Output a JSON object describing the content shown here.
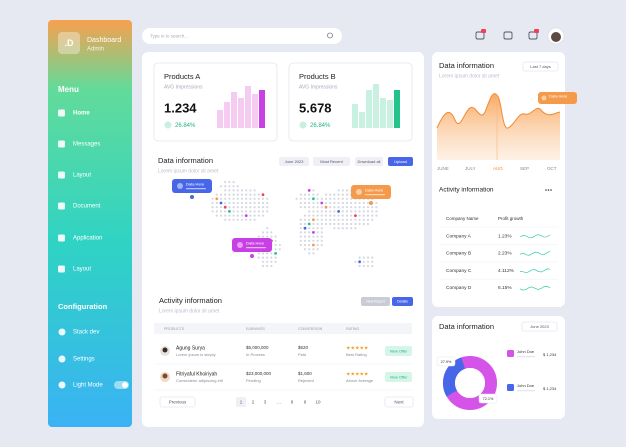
{
  "sidebar": {
    "logo": ".D",
    "title": "Dashboard",
    "subtitle": "Admin",
    "menu_heading": "Menu",
    "menu": [
      "Home",
      "Messages",
      "Layout",
      "Document",
      "Application",
      "Layout"
    ],
    "config_heading": "Configuration",
    "config": [
      "Stack dev",
      "Settings",
      "Light Mode"
    ]
  },
  "topbar": {
    "search_placeholder": "Type in to search..."
  },
  "products": [
    {
      "title": "Products A",
      "subtitle": "AVG Impressions",
      "value": "1.234",
      "change": "26.84%"
    },
    {
      "title": "Products B",
      "subtitle": "AVG Impressions",
      "value": "5.678",
      "change": "26.84%"
    }
  ],
  "data_info": {
    "title": "Data information",
    "subtitle": "Lorem ipsum dolor sit amet",
    "filters": [
      "June 2023",
      "Most Recent",
      "Download all",
      "Upload"
    ],
    "tooltips": [
      "Data Here",
      "Data Here",
      "Data Here"
    ]
  },
  "activity": {
    "title": "Activity information",
    "subtitle": "Lorem ipsum dolor sit amet",
    "buttons": [
      "New Report",
      "Details"
    ],
    "columns": [
      "PRODUCTS",
      "EARNINGS",
      "CONVERSION",
      "RATING"
    ],
    "rows": [
      {
        "name": "Agung Surya",
        "desc": "Lorem ipsum is simply",
        "earnings": "$5,000,000",
        "earnings_status": "In Process",
        "conversion": "$520",
        "conversion_status": "Paid",
        "stars": "★★★★★",
        "rating": "Best Rating",
        "action": "View Offer"
      },
      {
        "name": "Fitriyaful Khoiriyah",
        "desc": "Consectetur adipiscing elit",
        "earnings": "$23,000,000",
        "earnings_status": "Pending",
        "conversion": "$1,600",
        "conversion_status": "Rejected",
        "stars": "★★★★★",
        "rating": "Above Average",
        "action": "View Offer"
      }
    ],
    "pagination": {
      "prev": "Previous",
      "pages": [
        "1",
        "2",
        "3",
        "...",
        "8",
        "9",
        "10"
      ],
      "next": "Next"
    }
  },
  "trend": {
    "title": "Data information",
    "subtitle": "Lorem ipsum dolor sit amet",
    "range": "Last 7 days",
    "months": [
      "JUNE",
      "JULY",
      "AUG",
      "SEP",
      "OCT"
    ],
    "tooltip": "Data Here"
  },
  "growth": {
    "title": "Activity information",
    "columns": [
      "Company Name",
      "Profit growth"
    ],
    "rows": [
      [
        "Company A",
        "1.23%"
      ],
      [
        "Company B",
        "2.23%"
      ],
      [
        "Company C",
        "4.112%"
      ],
      [
        "Company D",
        "6.15%"
      ]
    ]
  },
  "donut": {
    "title": "Data information",
    "filter": "June 2023",
    "labels": [
      "27.9%",
      "72.1%"
    ],
    "legend": [
      {
        "name": "John Doe",
        "value": "$ 1,234"
      },
      {
        "name": "John Doe",
        "value": "$ 1,234"
      }
    ]
  }
}
